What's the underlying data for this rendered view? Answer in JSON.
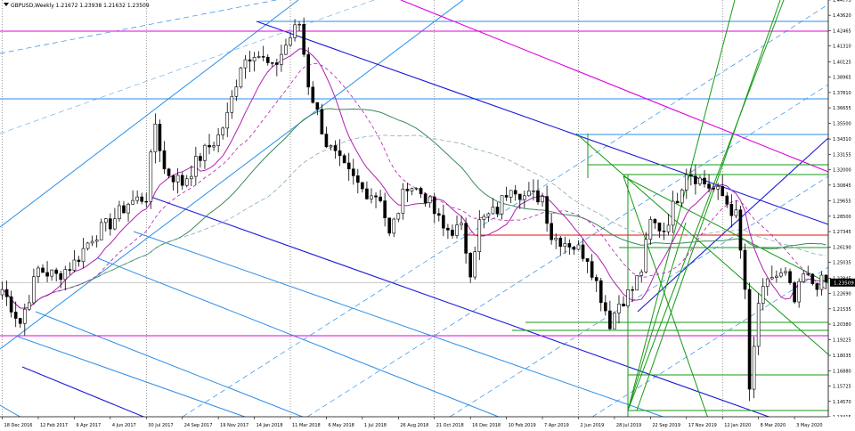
{
  "chart_data": {
    "type": "candlestick",
    "title": "GBPUSD,Weekly  1.21672 1.23938 1.21632 1.23509",
    "symbol": "GBPUSD",
    "timeframe": "Weekly",
    "ohlc_header": {
      "open": 1.21672,
      "high": 1.23938,
      "low": 1.21632,
      "close": 1.23509
    },
    "current_price_label": "1.23509",
    "ylim": [
      1.13415,
      1.4477
    ],
    "y_ticks": [
      "1.44775",
      "1.43620",
      "1.42465",
      "1.41310",
      "1.40125",
      "1.38965",
      "1.37810",
      "1.36655",
      "1.35500",
      "1.34310",
      "1.33155",
      "1.32000",
      "1.30845",
      "1.29655",
      "1.28500",
      "1.27345",
      "1.26190",
      "1.25035",
      "1.23845",
      "1.22690",
      "1.21535",
      "1.20380",
      "1.19225",
      "1.18035",
      "1.16880",
      "1.15725",
      "1.14570",
      "1.13415"
    ],
    "x_ticks": [
      "18 Dec 2016",
      "12 Feb 2017",
      "9 Apr 2017",
      "4 Jun 2017",
      "30 Jul 2017",
      "24 Sep 2017",
      "19 Nov 2017",
      "14 Jan 2018",
      "11 Mar 2018",
      "6 May 2018",
      "1 Jul 2018",
      "26 Aug 2018",
      "21 Oct 2018",
      "16 Dec 2018",
      "10 Feb 2019",
      "7 Apr 2019",
      "2 Jun 2019",
      "28 Jul 2019",
      "22 Sep 2019",
      "17 Nov 2019",
      "12 Jan 2020",
      "8 Mar 2020",
      "3 May 2020"
    ],
    "x_tick_index": [
      0,
      8,
      16,
      24,
      32,
      40,
      48,
      56,
      64,
      72,
      80,
      88,
      96,
      104,
      112,
      120,
      128,
      136,
      144,
      152,
      160,
      168,
      176
    ],
    "bars_count": 184,
    "path_points": [
      [
        0,
        1.23
      ],
      [
        4,
        1.205
      ],
      [
        8,
        1.245
      ],
      [
        12,
        1.24
      ],
      [
        16,
        1.25
      ],
      [
        20,
        1.27
      ],
      [
        24,
        1.28
      ],
      [
        28,
        1.295
      ],
      [
        32,
        1.3
      ],
      [
        34,
        1.355
      ],
      [
        36,
        1.32
      ],
      [
        40,
        1.31
      ],
      [
        44,
        1.33
      ],
      [
        48,
        1.345
      ],
      [
        50,
        1.36
      ],
      [
        53,
        1.4
      ],
      [
        56,
        1.41
      ],
      [
        60,
        1.395
      ],
      [
        64,
        1.42
      ],
      [
        66,
        1.43
      ],
      [
        68,
        1.385
      ],
      [
        72,
        1.34
      ],
      [
        76,
        1.32
      ],
      [
        80,
        1.305
      ],
      [
        84,
        1.3
      ],
      [
        86,
        1.27
      ],
      [
        90,
        1.31
      ],
      [
        94,
        1.3
      ],
      [
        98,
        1.275
      ],
      [
        102,
        1.275
      ],
      [
        104,
        1.245
      ],
      [
        106,
        1.28
      ],
      [
        110,
        1.29
      ],
      [
        113,
        1.31
      ],
      [
        116,
        1.3
      ],
      [
        120,
        1.3
      ],
      [
        122,
        1.27
      ],
      [
        126,
        1.265
      ],
      [
        130,
        1.255
      ],
      [
        133,
        1.225
      ],
      [
        135,
        1.205
      ],
      [
        137,
        1.22
      ],
      [
        140,
        1.23
      ],
      [
        142,
        1.245
      ],
      [
        144,
        1.28
      ],
      [
        147,
        1.275
      ],
      [
        150,
        1.3
      ],
      [
        152,
        1.32
      ],
      [
        156,
        1.31
      ],
      [
        160,
        1.3
      ],
      [
        163,
        1.285
      ],
      [
        165,
        1.23
      ],
      [
        166,
        1.15
      ],
      [
        168,
        1.22
      ],
      [
        171,
        1.24
      ],
      [
        174,
        1.24
      ],
      [
        176,
        1.22
      ],
      [
        178,
        1.24
      ],
      [
        180,
        1.235
      ],
      [
        183,
        1.235
      ]
    ],
    "grid": "vertical-dotted",
    "legend": "none",
    "colors": {
      "background": "#ffffff",
      "candle": "#000000",
      "axis": "#000000",
      "cyan_channel": "#2b8ee8",
      "blue_channel": "#1a1adc",
      "magenta": "#e000e0",
      "green": "#159a15",
      "red": "#e01010",
      "ma_slow": "#3a8a5a",
      "ma_fast": "#b020b0",
      "price_label_bg": "#000000",
      "price_label_text": "#ffffff"
    }
  }
}
